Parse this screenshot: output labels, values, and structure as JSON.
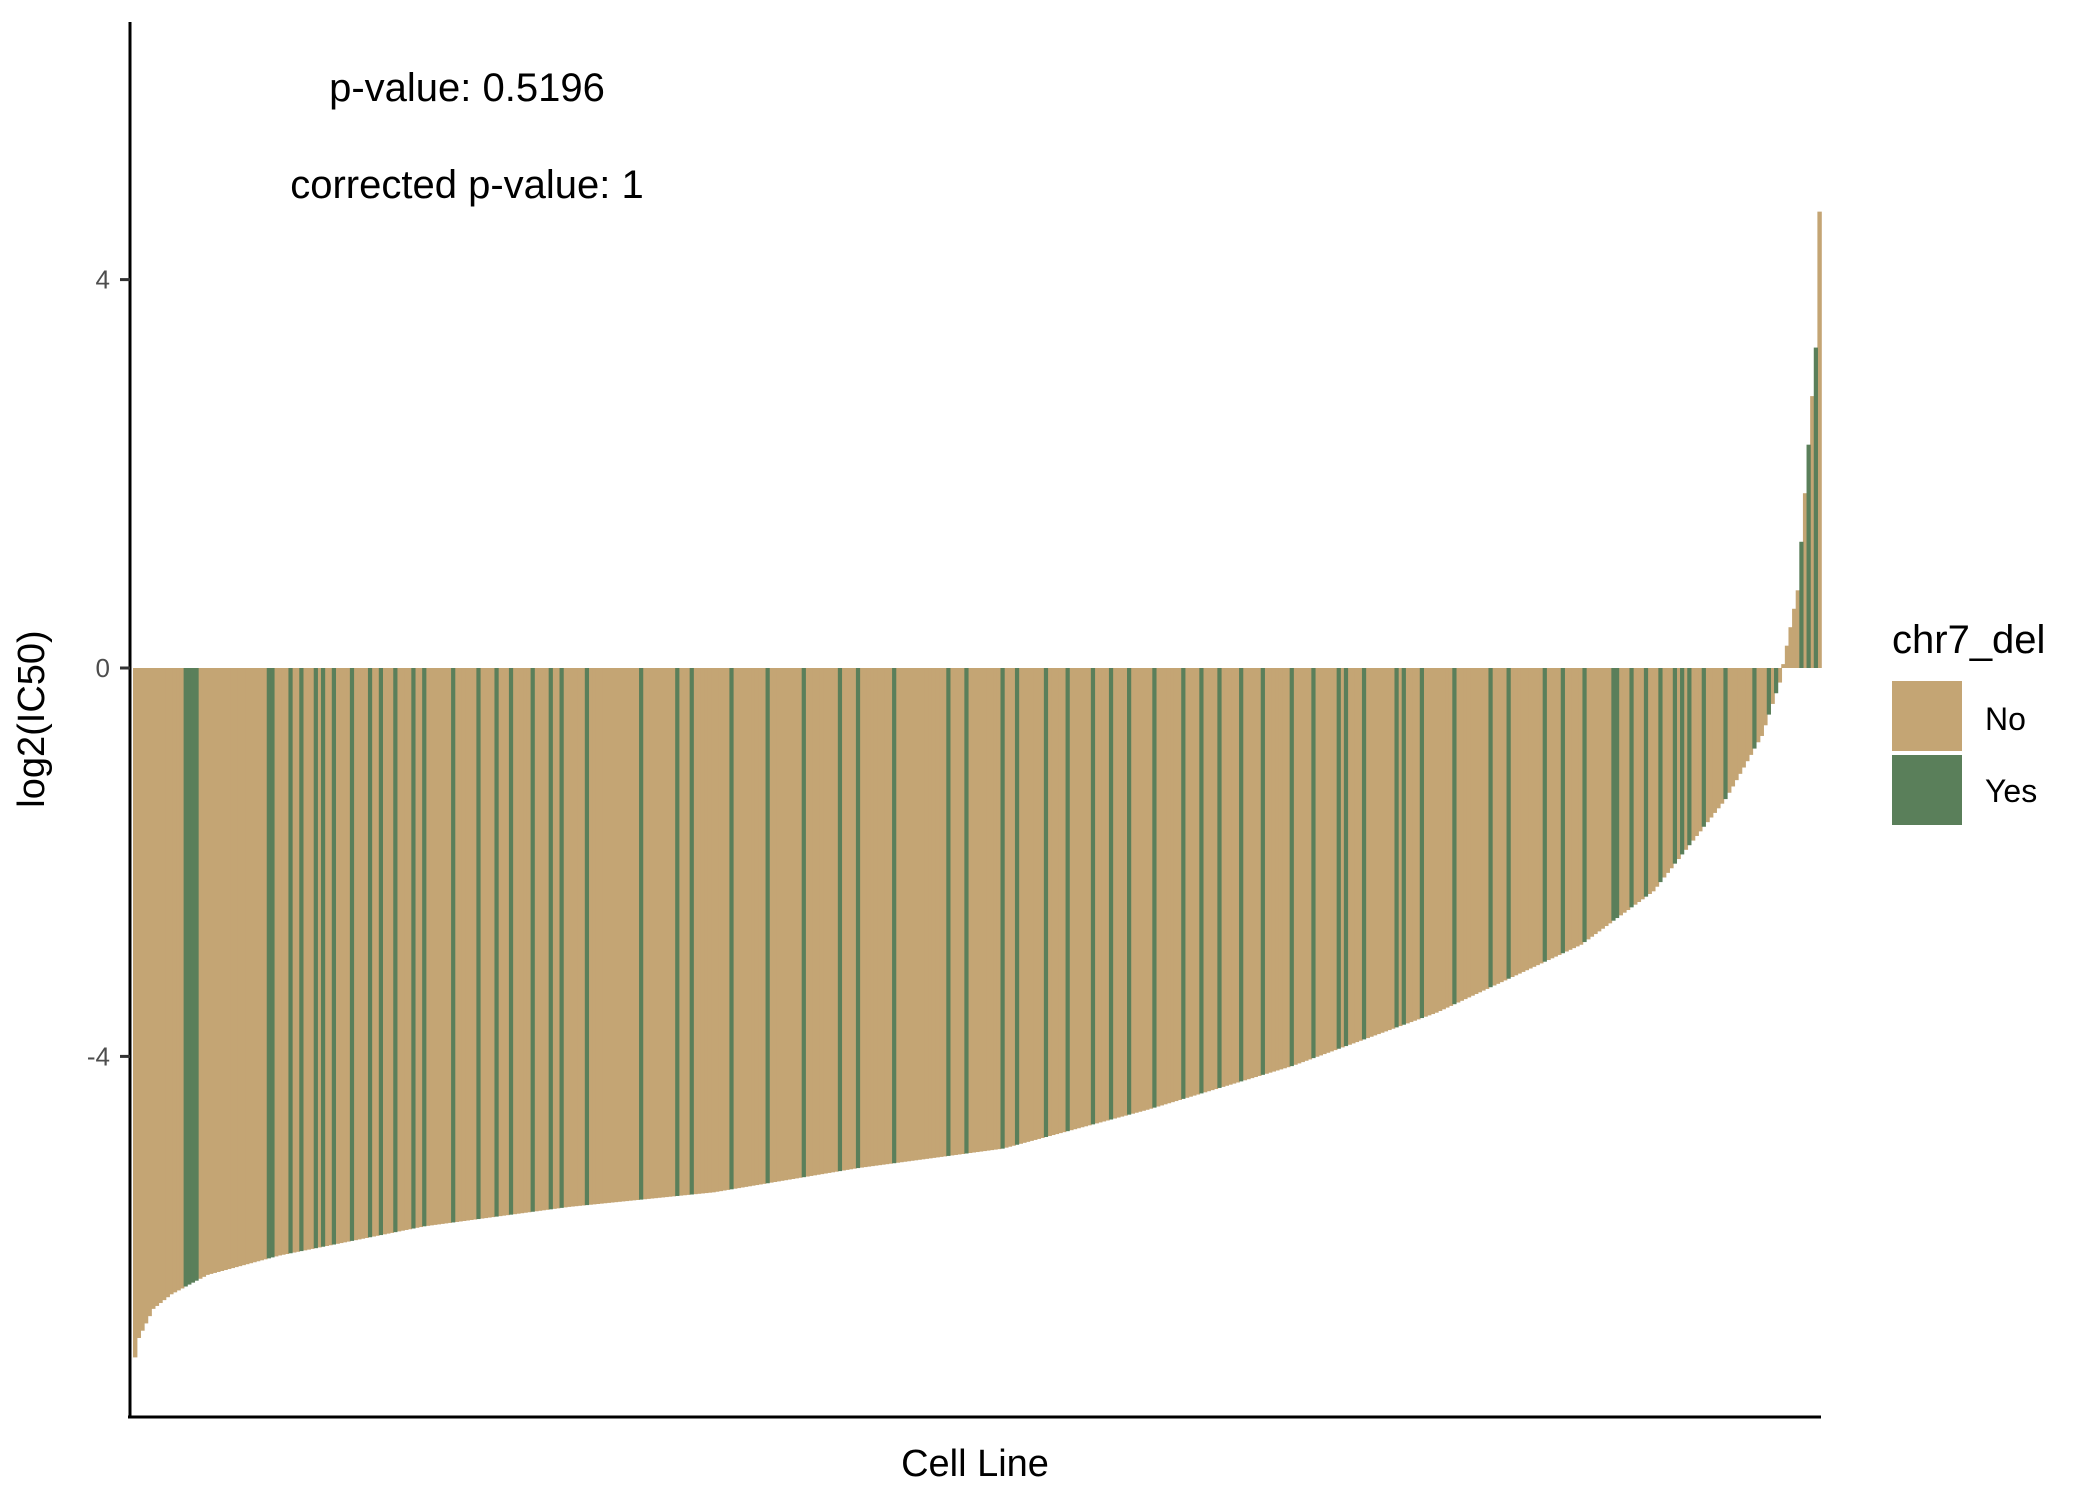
{
  "chart_data": {
    "type": "bar",
    "xlabel": "Cell Line",
    "ylabel": "log2(IC50)",
    "ylim": [
      -7.9,
      6.8
    ],
    "yticks": [
      4,
      0,
      -4
    ],
    "ytick_labels": [
      "4",
      "0",
      "-4"
    ],
    "grid": false,
    "annotations": [
      "p-value: 0.5196",
      "corrected p-value: 1"
    ],
    "legend": {
      "title": "chr7_del",
      "position": "right",
      "entries": [
        {
          "label": "No",
          "color": "#C4A574"
        },
        {
          "label": "Yes",
          "color": "#5A7F5A"
        }
      ]
    },
    "n_bars": 467,
    "values_sorted_ascending": true,
    "value_profile": [
      [
        0,
        -7.1
      ],
      [
        1,
        -6.9
      ],
      [
        5,
        -6.6
      ],
      [
        10,
        -6.45
      ],
      [
        20,
        -6.25
      ],
      [
        40,
        -6.05
      ],
      [
        80,
        -5.75
      ],
      [
        120,
        -5.55
      ],
      [
        160,
        -5.4
      ],
      [
        200,
        -5.15
      ],
      [
        240,
        -4.95
      ],
      [
        280,
        -4.55
      ],
      [
        320,
        -4.1
      ],
      [
        360,
        -3.55
      ],
      [
        400,
        -2.85
      ],
      [
        420,
        -2.3
      ],
      [
        440,
        -1.35
      ],
      [
        450,
        -0.7
      ],
      [
        455,
        -0.15
      ],
      [
        460,
        0.8
      ],
      [
        465,
        3.3
      ],
      [
        466,
        4.7
      ]
    ],
    "yes_indices": [
      14,
      15,
      16,
      17,
      37,
      38,
      43,
      46,
      50,
      52,
      55,
      60,
      65,
      68,
      72,
      77,
      80,
      88,
      95,
      100,
      104,
      110,
      115,
      118,
      125,
      140,
      150,
      154,
      165,
      175,
      185,
      195,
      200,
      210,
      225,
      230,
      240,
      244,
      252,
      258,
      265,
      270,
      275,
      282,
      290,
      295,
      300,
      306,
      312,
      320,
      326,
      333,
      335,
      340,
      349,
      351,
      356,
      365,
      375,
      380,
      390,
      395,
      401,
      409,
      410,
      414,
      418,
      422,
      426,
      428,
      430,
      434,
      440,
      448,
      452,
      454,
      461,
      463,
      465
    ],
    "series": [
      {
        "name": "No",
        "color": "#C4A574"
      },
      {
        "name": "Yes",
        "color": "#5A7F5A"
      }
    ]
  }
}
